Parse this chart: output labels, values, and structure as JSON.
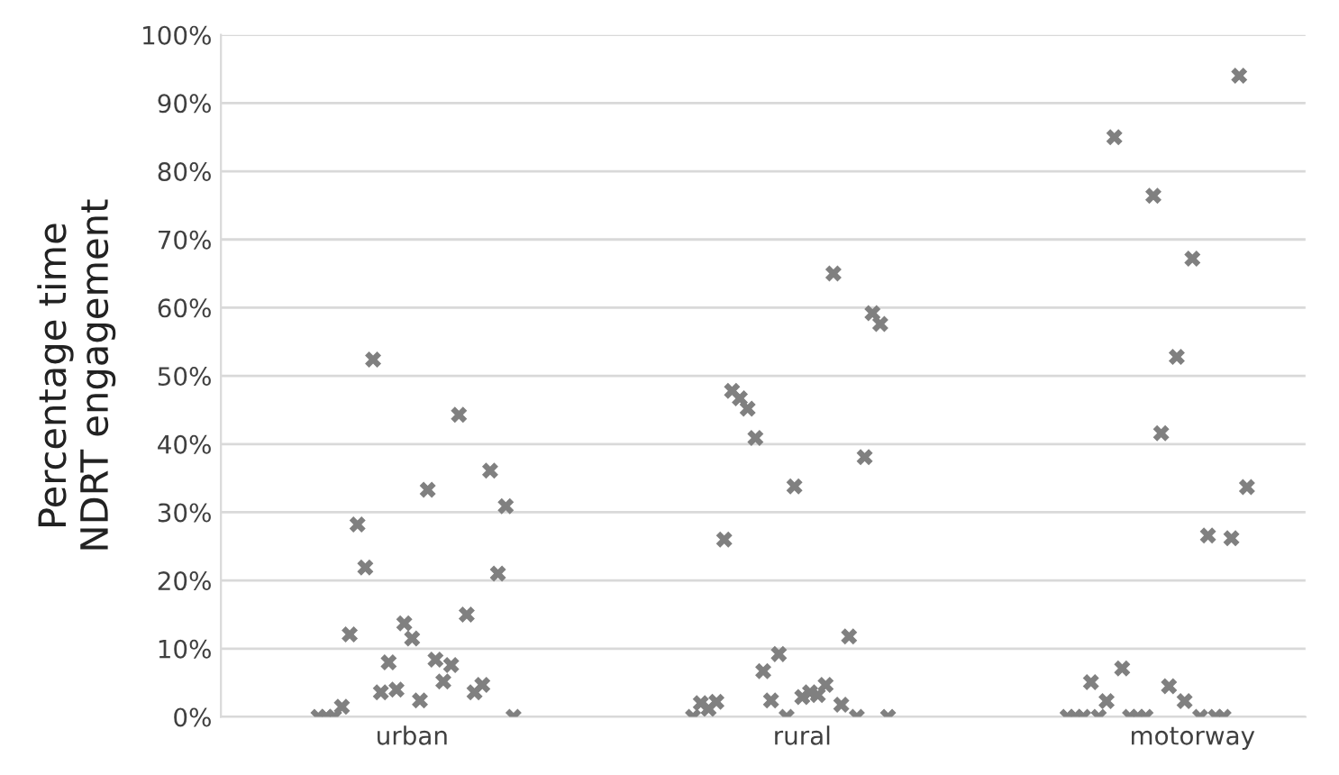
{
  "chart_data": {
    "type": "scatter",
    "ylabel": "Percentage time\nNDRT engagement",
    "categories": [
      null,
      null,
      null,
      null,
      null,
      null,
      null,
      null,
      null,
      null,
      null,
      null,
      null,
      null,
      null,
      null,
      null,
      null,
      null,
      null,
      null,
      null,
      null,
      null,
      "urban",
      null,
      null,
      null,
      null,
      null,
      null,
      null,
      null,
      null,
      null,
      null,
      null,
      null,
      null,
      null,
      null,
      null,
      null,
      null,
      null,
      null,
      null,
      null,
      null,
      null,
      null,
      null,
      null,
      null,
      null,
      null,
      null,
      null,
      null,
      null,
      null,
      null,
      null,
      null,
      null,
      null,
      null,
      null,
      null,
      null,
      null,
      null,
      null,
      null,
      "rural",
      null,
      null,
      null,
      null,
      null,
      null,
      null,
      null,
      null,
      null,
      null,
      null,
      null,
      null,
      null,
      null,
      null,
      null,
      null,
      null,
      null,
      null,
      null,
      null,
      null,
      null,
      null,
      null,
      null,
      null,
      null,
      null,
      null,
      null,
      null,
      null,
      null,
      null,
      null,
      null,
      null,
      null,
      null,
      null,
      null,
      null,
      null,
      null,
      null,
      "motorway",
      null,
      null,
      null,
      null,
      null,
      null,
      null,
      null,
      null,
      null,
      null,
      null,
      null,
      null
    ],
    "ylim": [
      0,
      100
    ],
    "yticks": [
      {
        "value": 0,
        "label": "0%"
      },
      {
        "value": 10,
        "label": "10%"
      },
      {
        "value": 20,
        "label": "20%"
      },
      {
        "value": 30,
        "label": "30%"
      },
      {
        "value": 40,
        "label": "40%"
      },
      {
        "value": 50,
        "label": "50%"
      },
      {
        "value": 60,
        "label": "60%"
      },
      {
        "value": 70,
        "label": "70%"
      },
      {
        "value": 80,
        "label": "80%"
      },
      {
        "value": 90,
        "label": "90%"
      },
      {
        "value": 100,
        "label": "100%"
      }
    ],
    "grid": "y",
    "marker": "cross",
    "series": [
      {
        "color": "#808080",
        "values": [
          null,
          null,
          null,
          null,
          null,
          null,
          null,
          null,
          null,
          null,
          null,
          null,
          0,
          0,
          0,
          1.5,
          12.1,
          28.2,
          21.9,
          52.4,
          3.6,
          8.0,
          4.0,
          13.7,
          11.5,
          2.4,
          33.3,
          8.4,
          5.2,
          7.6,
          44.3,
          15.0,
          3.6,
          4.7,
          36.1,
          21.0,
          30.9,
          0,
          null,
          null,
          null,
          null,
          null,
          null,
          null,
          null,
          null,
          null,
          null,
          null,
          null,
          null,
          null,
          null,
          null,
          null,
          null,
          null,
          null,
          null,
          0,
          2.0,
          1.2,
          2.2,
          26.0,
          47.8,
          46.7,
          45.2,
          40.9,
          6.7,
          2.4,
          9.2,
          0,
          33.8,
          2.9,
          3.6,
          3.2,
          4.7,
          65.0,
          1.8,
          11.8,
          0,
          38.1,
          59.2,
          57.6,
          0,
          null,
          null,
          null,
          null,
          null,
          null,
          null,
          null,
          null,
          null,
          null,
          null,
          null,
          null,
          null,
          null,
          null,
          null,
          null,
          null,
          null,
          null,
          0,
          0,
          0,
          5.1,
          0,
          2.3,
          85.0,
          7.1,
          0,
          0,
          0,
          76.4,
          41.6,
          4.5,
          52.8,
          2.3,
          67.2,
          0,
          26.6,
          0,
          0,
          26.2,
          94.0,
          33.7,
          null,
          null,
          null,
          null,
          null,
          null,
          null
        ]
      }
    ]
  }
}
